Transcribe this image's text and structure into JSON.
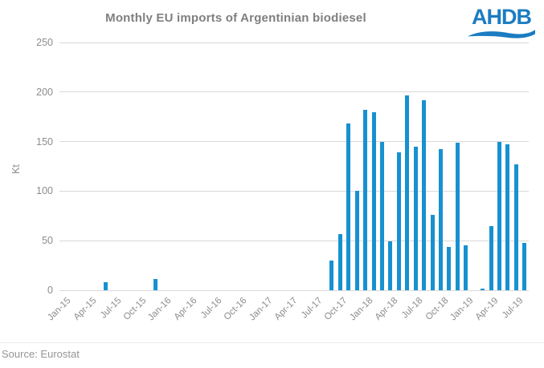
{
  "header": {
    "title": "Monthly EU imports of Argentinian biodiesel",
    "logo_text": "AHDB"
  },
  "footer": {
    "source": "Source: Eurostat"
  },
  "colors": {
    "bar": "#1791d0",
    "logo_blue": "#1b7cc1",
    "gridline": "#d9d9d9",
    "axis_text": "#8c8c8c",
    "title_text": "#7f7f7f"
  },
  "chart_data": {
    "type": "bar",
    "title": "Monthly EU imports of Argentinian biodiesel",
    "xlabel": "",
    "ylabel": "Kt",
    "ylim": [
      0,
      250
    ],
    "yticks": [
      0,
      50,
      100,
      150,
      200,
      250
    ],
    "grid": "horizontal",
    "legend": "none",
    "source": "Source: Eurostat",
    "x_tick_every": 3,
    "x": [
      "Jan-15",
      "Feb-15",
      "Mar-15",
      "Apr-15",
      "May-15",
      "Jun-15",
      "Jul-15",
      "Aug-15",
      "Sep-15",
      "Oct-15",
      "Nov-15",
      "Dec-15",
      "Jan-16",
      "Feb-16",
      "Mar-16",
      "Apr-16",
      "May-16",
      "Jun-16",
      "Jul-16",
      "Aug-16",
      "Sep-16",
      "Oct-16",
      "Nov-16",
      "Dec-16",
      "Jan-17",
      "Feb-17",
      "Mar-17",
      "Apr-17",
      "May-17",
      "Jun-17",
      "Jul-17",
      "Aug-17",
      "Sep-17",
      "Oct-17",
      "Nov-17",
      "Dec-17",
      "Jan-18",
      "Feb-18",
      "Mar-18",
      "Apr-18",
      "May-18",
      "Jun-18",
      "Jul-18",
      "Aug-18",
      "Sep-18",
      "Oct-18",
      "Nov-18",
      "Dec-18",
      "Jan-19",
      "Feb-19",
      "Mar-19",
      "Apr-19",
      "May-19",
      "Jun-19",
      "Jul-19",
      "Aug-19"
    ],
    "values": [
      0,
      0,
      0,
      0,
      0,
      8,
      0,
      0,
      0,
      0,
      0,
      11,
      0,
      0,
      0,
      0,
      0,
      0,
      0,
      0,
      0,
      0,
      0,
      0,
      0,
      0,
      0,
      0,
      0,
      0,
      0,
      0,
      30,
      57,
      168,
      100,
      182,
      180,
      150,
      49,
      139,
      197,
      145,
      192,
      76,
      142,
      44,
      149,
      45,
      0,
      2,
      65,
      150,
      147,
      127,
      48
    ]
  }
}
